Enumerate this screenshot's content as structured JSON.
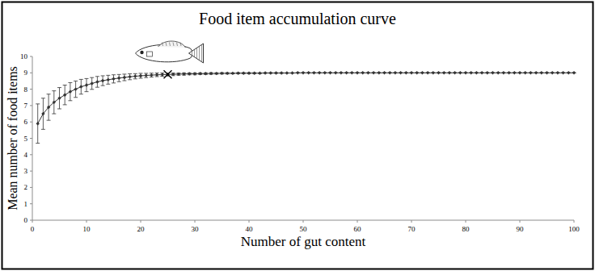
{
  "chart_data": {
    "type": "line",
    "title": "Food item accumulation curve",
    "x_label": "Number of gut content",
    "y_label": "Mean number of food items",
    "color": "#333333",
    "marker": "diamond",
    "grid": false,
    "x": [
      1,
      2,
      3,
      4,
      5,
      6,
      7,
      8,
      9,
      10,
      11,
      12,
      13,
      14,
      15,
      16,
      17,
      18,
      19,
      20,
      21,
      22,
      23,
      24,
      25,
      26,
      27,
      28,
      29,
      30,
      31,
      32,
      33,
      34,
      35,
      36,
      37,
      38,
      39,
      40,
      41,
      42,
      43,
      44,
      45,
      46,
      47,
      48,
      49,
      50,
      51,
      52,
      53,
      54,
      55,
      56,
      57,
      58,
      59,
      60,
      61,
      62,
      63,
      64,
      65,
      66,
      67,
      68,
      69,
      70,
      71,
      72,
      73,
      74,
      75,
      76,
      77,
      78,
      79,
      80,
      81,
      82,
      83,
      84,
      85,
      86,
      87,
      88,
      89,
      90,
      91,
      92,
      93,
      94,
      95,
      96,
      97,
      98,
      99,
      100
    ],
    "values": [
      5.9,
      6.5,
      6.9,
      7.2,
      7.45,
      7.65,
      7.85,
      8.0,
      8.15,
      8.25,
      8.35,
      8.45,
      8.52,
      8.58,
      8.63,
      8.68,
      8.72,
      8.76,
      8.79,
      8.82,
      8.84,
      8.86,
      8.88,
      8.89,
      8.9,
      8.91,
      8.92,
      8.93,
      8.94,
      8.94,
      8.95,
      8.95,
      8.96,
      8.96,
      8.97,
      8.97,
      8.97,
      8.98,
      8.98,
      8.98,
      8.98,
      8.98,
      8.99,
      8.99,
      8.99,
      8.99,
      8.99,
      8.99,
      9,
      9,
      9,
      9,
      9,
      9,
      9,
      9,
      9,
      9,
      9,
      9,
      9,
      9,
      9,
      9,
      9,
      9,
      9,
      9,
      9,
      9,
      9,
      9,
      9,
      9,
      9,
      9,
      9,
      9,
      9,
      9,
      9,
      9,
      9,
      9,
      9,
      9,
      9,
      9,
      9,
      9,
      9,
      9,
      9,
      9,
      9,
      9,
      9,
      9,
      9,
      9
    ],
    "error": [
      1.2,
      0.95,
      0.8,
      0.7,
      0.65,
      0.6,
      0.55,
      0.5,
      0.45,
      0.4,
      0.36,
      0.33,
      0.3,
      0.27,
      0.25,
      0.22,
      0.2,
      0.18,
      0.16,
      0.15,
      0.13,
      0.12,
      0.11,
      0.1,
      0.09,
      0.08,
      0.07,
      0.07,
      0.06,
      0.06,
      0.05,
      0.05,
      0.05,
      0.04,
      0.04,
      0.04,
      0.03,
      0.03,
      0.03,
      0.03,
      0.03,
      0.02,
      0.02,
      0.02,
      0.02,
      0.02,
      0.01,
      0.01,
      0.01,
      0.01,
      0.01,
      0.01,
      0.01,
      0.01,
      0.01,
      0,
      0,
      0,
      0,
      0,
      0,
      0,
      0,
      0,
      0,
      0,
      0,
      0,
      0,
      0,
      0,
      0,
      0,
      0,
      0,
      0,
      0,
      0,
      0,
      0,
      0,
      0,
      0,
      0,
      0,
      0,
      0,
      0,
      0,
      0,
      0,
      0,
      0,
      0,
      0,
      0,
      0,
      0,
      0,
      0
    ],
    "marked_point": {
      "x": 25,
      "y": 8.9
    },
    "xlim": [
      0,
      100
    ],
    "ylim": [
      0,
      10
    ],
    "xticks": [
      0,
      10,
      20,
      30,
      40,
      50,
      60,
      70,
      80,
      90,
      100
    ],
    "yticks": [
      0,
      1,
      2,
      3,
      4,
      5,
      6,
      7,
      8,
      9,
      10
    ]
  }
}
